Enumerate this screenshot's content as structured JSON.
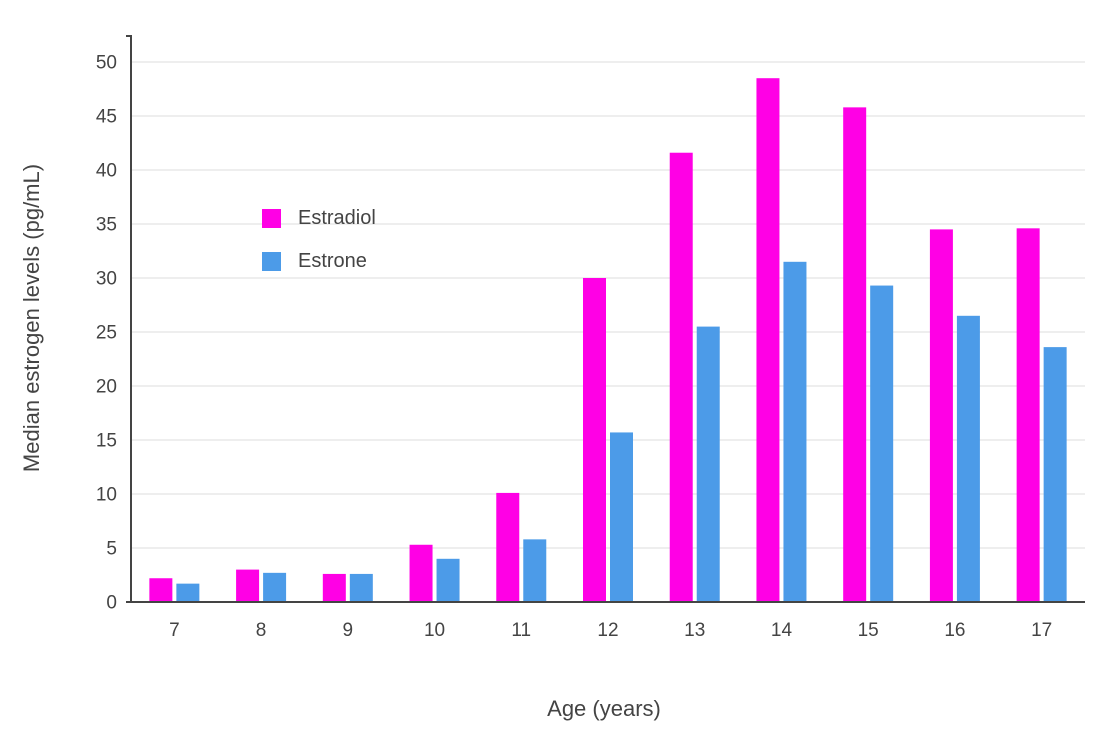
{
  "chart_data": {
    "type": "bar",
    "categories": [
      "7",
      "8",
      "9",
      "10",
      "11",
      "12",
      "13",
      "14",
      "15",
      "16",
      "17"
    ],
    "series": [
      {
        "name": "Estradiol",
        "color": "#FF00E5",
        "values": [
          2.2,
          3.0,
          2.6,
          5.3,
          10.1,
          30.0,
          41.6,
          48.5,
          45.8,
          34.5,
          34.6
        ]
      },
      {
        "name": "Estrone",
        "color": "#4C9BE8",
        "values": [
          1.7,
          2.7,
          2.6,
          4.0,
          5.8,
          15.7,
          25.5,
          31.5,
          29.3,
          26.5,
          23.6
        ]
      }
    ],
    "title": "",
    "xlabel": "Age (years)",
    "ylabel": "Median estrogen levels (pg/mL)",
    "ylim": [
      0,
      50
    ],
    "yticks": [
      0,
      5,
      10,
      15,
      20,
      25,
      30,
      35,
      40,
      45,
      50
    ],
    "grid": true,
    "legend_position": "inside-top-left",
    "colors": {
      "axis": "#444444",
      "tick_label": "#444444",
      "gridline": "#E9E9E9",
      "background": "#FFFFFF"
    }
  }
}
